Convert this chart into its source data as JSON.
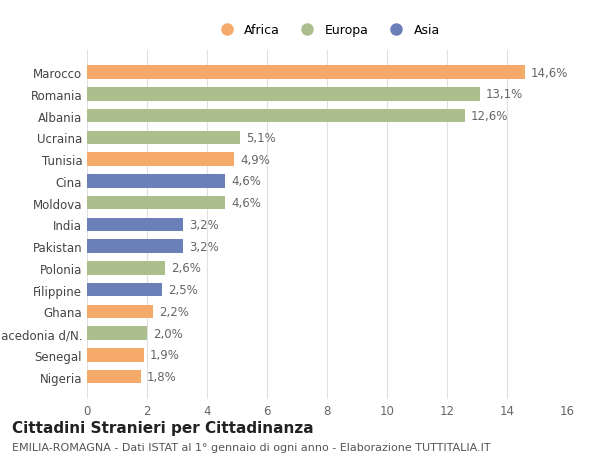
{
  "categories": [
    "Marocco",
    "Romania",
    "Albania",
    "Ucraina",
    "Tunisia",
    "Cina",
    "Moldova",
    "India",
    "Pakistan",
    "Polonia",
    "Filippine",
    "Ghana",
    "Macedonia d/N.",
    "Senegal",
    "Nigeria"
  ],
  "values": [
    14.6,
    13.1,
    12.6,
    5.1,
    4.9,
    4.6,
    4.6,
    3.2,
    3.2,
    2.6,
    2.5,
    2.2,
    2.0,
    1.9,
    1.8
  ],
  "labels": [
    "14,6%",
    "13,1%",
    "12,6%",
    "5,1%",
    "4,9%",
    "4,6%",
    "4,6%",
    "3,2%",
    "3,2%",
    "2,6%",
    "2,5%",
    "2,2%",
    "2,0%",
    "1,9%",
    "1,8%"
  ],
  "continents": [
    "Africa",
    "Europa",
    "Europa",
    "Europa",
    "Africa",
    "Asia",
    "Europa",
    "Asia",
    "Asia",
    "Europa",
    "Asia",
    "Africa",
    "Europa",
    "Africa",
    "Africa"
  ],
  "colors": {
    "Africa": "#F5A96A",
    "Europa": "#ABBE8E",
    "Asia": "#6B7FB8"
  },
  "xlim": [
    0,
    16
  ],
  "xticks": [
    0,
    2,
    4,
    6,
    8,
    10,
    12,
    14,
    16
  ],
  "title": "Cittadini Stranieri per Cittadinanza",
  "subtitle": "EMILIA-ROMAGNA - Dati ISTAT al 1° gennaio di ogni anno - Elaborazione TUTTITALIA.IT",
  "background_color": "#ffffff",
  "grid_color": "#e0e0e0",
  "bar_height": 0.62,
  "label_fontsize": 8.5,
  "title_fontsize": 11,
  "subtitle_fontsize": 8,
  "tick_fontsize": 8.5,
  "ytick_fontsize": 8.5,
  "figsize": [
    6.0,
    4.6
  ],
  "dpi": 100
}
